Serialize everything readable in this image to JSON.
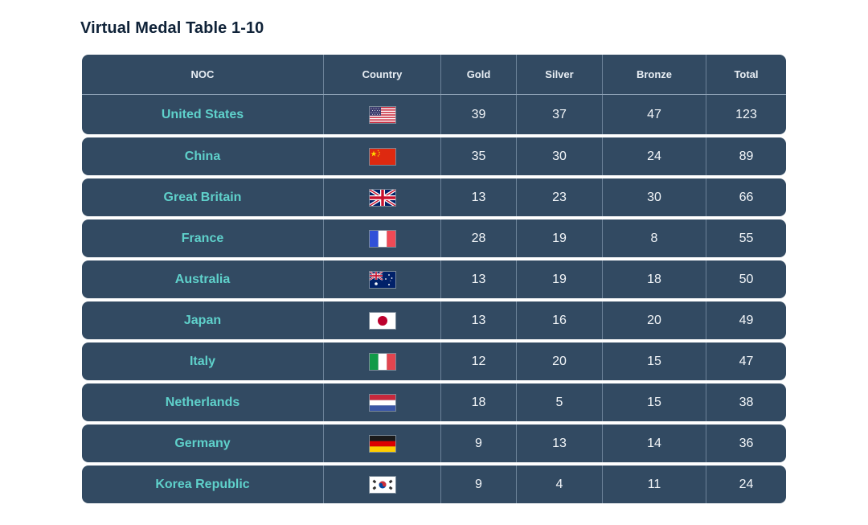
{
  "title": "Virtual Medal Table 1-10",
  "columns": {
    "noc": "NOC",
    "country": "Country",
    "gold": "Gold",
    "silver": "Silver",
    "bronze": "Bronze",
    "total": "Total"
  },
  "colors": {
    "row_background": "#324a62",
    "noc_text": "#5fd1cb",
    "title_text": "#0f2238"
  },
  "rows": [
    {
      "noc": "United States",
      "flag_icon": "flag-usa-icon",
      "gold": "39",
      "silver": "37",
      "bronze": "47",
      "total": "123"
    },
    {
      "noc": "China",
      "flag_icon": "flag-china-icon",
      "gold": "35",
      "silver": "30",
      "bronze": "24",
      "total": "89"
    },
    {
      "noc": "Great Britain",
      "flag_icon": "flag-great-britain-icon",
      "gold": "13",
      "silver": "23",
      "bronze": "30",
      "total": "66"
    },
    {
      "noc": "France",
      "flag_icon": "flag-france-icon",
      "gold": "28",
      "silver": "19",
      "bronze": "8",
      "total": "55"
    },
    {
      "noc": "Australia",
      "flag_icon": "flag-australia-icon",
      "gold": "13",
      "silver": "19",
      "bronze": "18",
      "total": "50"
    },
    {
      "noc": "Japan",
      "flag_icon": "flag-japan-icon",
      "gold": "13",
      "silver": "16",
      "bronze": "20",
      "total": "49"
    },
    {
      "noc": "Italy",
      "flag_icon": "flag-italy-icon",
      "gold": "12",
      "silver": "20",
      "bronze": "15",
      "total": "47"
    },
    {
      "noc": "Netherlands",
      "flag_icon": "flag-netherlands-icon",
      "gold": "18",
      "silver": "5",
      "bronze": "15",
      "total": "38"
    },
    {
      "noc": "Germany",
      "flag_icon": "flag-germany-icon",
      "gold": "9",
      "silver": "13",
      "bronze": "14",
      "total": "36"
    },
    {
      "noc": "Korea Republic",
      "flag_icon": "flag-korea-icon",
      "gold": "9",
      "silver": "4",
      "bronze": "11",
      "total": "24"
    }
  ]
}
